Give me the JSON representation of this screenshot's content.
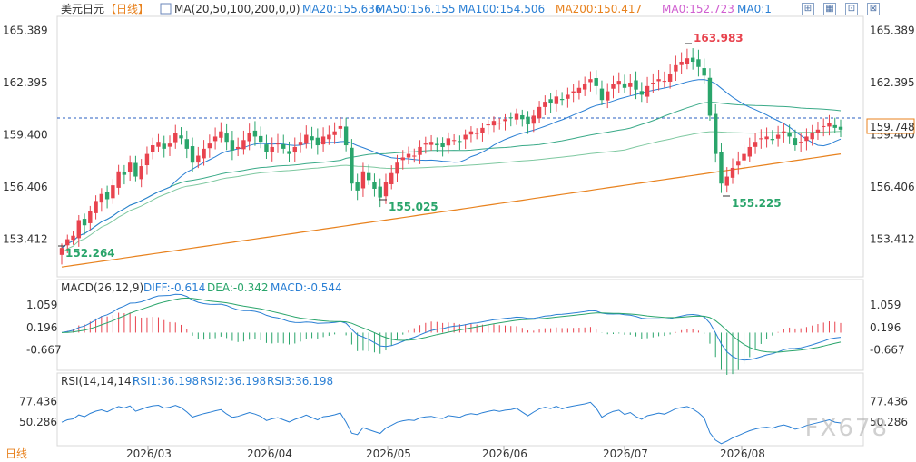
{
  "header": {
    "symbol": "美元日元",
    "period": "【日线】",
    "ma_label": "MA(20,50,100,200,0,0)",
    "ma_values": [
      {
        "text": "MA20:155.636",
        "color": "#2a7fd4"
      },
      {
        "text": "MA50:156.155",
        "color": "#2a7fd4"
      },
      {
        "text": "MA100:154.506",
        "color": "#2a7fd4"
      },
      {
        "text": "MA200:150.417",
        "color": "#e8821e"
      },
      {
        "text": "MA0:152.723",
        "color": "#d05fd0"
      },
      {
        "text": "MA0:1",
        "color": "#2a7fd4"
      }
    ]
  },
  "price_axis": [
    "165.389",
    "162.395",
    "159.400",
    "156.406",
    "153.412"
  ],
  "current_price": "159.748",
  "annotations": {
    "high": "163.983",
    "low1": "152.264",
    "low2": "155.025",
    "low3": "155.225"
  },
  "macd": {
    "label": "MACD(26,12,9)",
    "diff": "DIFF:-0.614",
    "dea": "DEA:-0.342",
    "macd": "MACD:-0.544",
    "axis": [
      "1.059",
      "0.196",
      "-0.667"
    ]
  },
  "rsi": {
    "label": "RSI(14,14,14)",
    "rsi1": "RSI1:36.198",
    "rsi2": "RSI2:36.198",
    "rsi3": "RSI3:36.198",
    "axis": [
      "77.436",
      "50.286"
    ]
  },
  "x_axis": [
    "2026/03",
    "2026/04",
    "2026/05",
    "2026/06",
    "2026/07",
    "2026/08"
  ],
  "footer": {
    "period_button": "日线"
  },
  "watermark": "FX678",
  "colors": {
    "up": "#e8434e",
    "down": "#2aa56b",
    "ma20": "#2a7fd4",
    "ma50": "#3aaa88",
    "ma100": "#7ec8a0",
    "ma200": "#e8821e",
    "diff": "#2a7fd4",
    "dea": "#2aa56b",
    "rsi": "#2a7fd4",
    "price_line": "#2a5fc0"
  },
  "chart_data": {
    "type": "candlestick",
    "ylim": [
      151.5,
      166.0
    ],
    "series_close": [
      152.9,
      153.4,
      153.6,
      154.5,
      154.2,
      155.0,
      155.6,
      156.0,
      155.7,
      156.5,
      157.3,
      157.1,
      157.8,
      157.0,
      157.6,
      158.3,
      158.8,
      159.0,
      158.6,
      158.9,
      159.5,
      159.2,
      158.6,
      157.8,
      158.2,
      158.6,
      158.9,
      159.3,
      159.6,
      159.0,
      158.5,
      158.7,
      159.1,
      159.5,
      159.3,
      159.0,
      158.4,
      158.7,
      158.9,
      158.6,
      158.3,
      158.7,
      159.0,
      159.4,
      159.1,
      158.8,
      159.3,
      159.4,
      159.6,
      159.9,
      158.8,
      156.6,
      156.2,
      157.3,
      156.8,
      156.3,
      155.8,
      156.7,
      157.2,
      157.8,
      158.1,
      158.3,
      158.2,
      158.7,
      158.9,
      159.0,
      158.8,
      158.7,
      159.2,
      159.1,
      159.0,
      159.4,
      159.6,
      159.5,
      159.8,
      160.0,
      160.2,
      160.1,
      160.3,
      160.4,
      160.6,
      160.3,
      160.0,
      160.5,
      161.0,
      161.3,
      161.2,
      161.6,
      161.4,
      161.7,
      161.9,
      162.1,
      162.3,
      162.6,
      162.2,
      161.4,
      161.9,
      162.3,
      162.5,
      162.1,
      162.4,
      162.0,
      161.7,
      162.2,
      162.4,
      162.6,
      162.5,
      162.9,
      163.4,
      163.6,
      163.8,
      163.6,
      163.3,
      162.8,
      160.5,
      158.3,
      156.6,
      157.0,
      157.5,
      157.9,
      158.3,
      158.7,
      159.0,
      159.2,
      159.3,
      159.1,
      159.4,
      159.6,
      159.3,
      158.8,
      159.0,
      159.3,
      159.5,
      159.7,
      159.9,
      160.1,
      159.8,
      159.7
    ],
    "macd_axis_range": [
      -1.3,
      1.4
    ],
    "rsi_axis_range": [
      20,
      95
    ]
  }
}
